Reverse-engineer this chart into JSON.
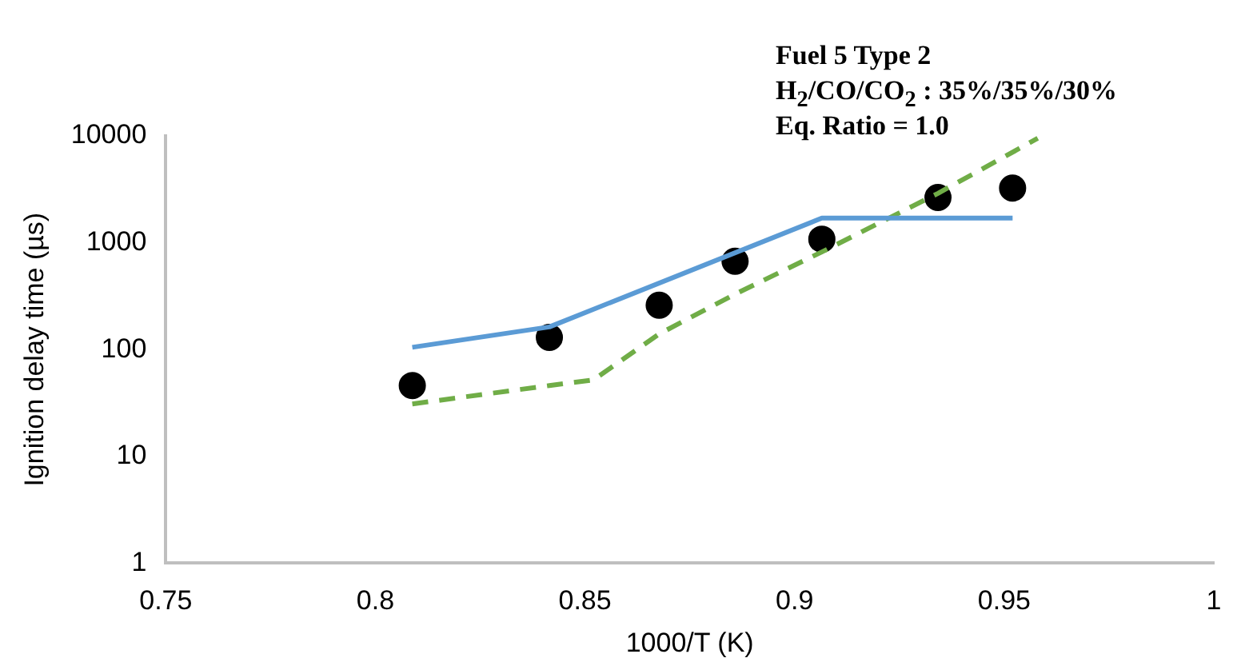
{
  "chart_data": {
    "type": "line",
    "xlabel": "1000/T (K)",
    "ylabel": "Ignition delay time (µs)",
    "annotations": [
      "Fuel 5 Type 2",
      "H$_{2}$/CO/CO$_{2}$ : 35%/35%/30%",
      "Eq. Ratio = 1.0"
    ],
    "log": "y",
    "grid": false,
    "legend": false,
    "xlim": [
      0.75,
      1
    ],
    "xticks": [
      0.75,
      0.8,
      0.85,
      0.9,
      0.95,
      1
    ],
    "ylim": [
      1,
      10000
    ],
    "yticks": [
      1,
      10,
      100,
      1000,
      10000
    ],
    "series": [
      {
        "color": "#5b9bd5",
        "line_style": "solid",
        "marker": "none",
        "x": [
          0.8088,
          0.8415,
          0.9065,
          0.952
        ],
        "values": [
          105,
          163,
          1700,
          1700
        ]
      },
      {
        "color": "#70ad47",
        "line_style": "dashed",
        "marker": "none",
        "x": [
          0.8088,
          0.8415,
          0.852,
          0.8677,
          0.8858,
          0.9065,
          0.9342,
          0.958
        ],
        "values": [
          31,
          46,
          52,
          140,
          330,
          820,
          2900,
          9500
        ]
      },
      {
        "type": "scatter",
        "color": "#000000",
        "marker": "circle",
        "x": [
          0.8088,
          0.8415,
          0.8677,
          0.8858,
          0.9065,
          0.9342,
          0.952
        ],
        "values": [
          46,
          130,
          260,
          670,
          1080,
          2650,
          3250
        ]
      }
    ]
  }
}
